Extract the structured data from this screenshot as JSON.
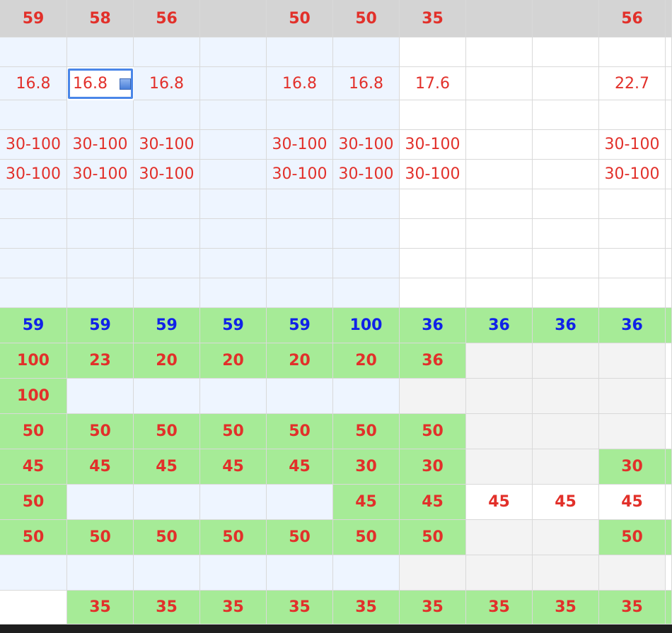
{
  "spreadsheet": {
    "rows": [
      {
        "kind": "header",
        "cells": [
          "59",
          "58",
          "56",
          "",
          "50",
          "50",
          "35",
          "",
          "",
          "56"
        ]
      },
      {
        "kind": "blank",
        "cells": [
          "",
          "",
          "",
          "",
          "",
          "",
          "",
          "",
          "",
          ""
        ]
      },
      {
        "kind": "value",
        "cells": [
          "16.8",
          "16.8",
          "16.8",
          "",
          "16.8",
          "16.8",
          "17.6",
          "",
          "",
          "22.7"
        ]
      },
      {
        "kind": "blank",
        "cells": [
          "",
          "",
          "",
          "",
          "",
          "",
          "",
          "",
          "",
          ""
        ]
      },
      {
        "kind": "range",
        "cells": [
          "30-100",
          "30-100",
          "30-100",
          "",
          "30-100",
          "30-100",
          "30-100",
          "",
          "",
          "30-100"
        ]
      },
      {
        "kind": "range",
        "cells": [
          "30-100",
          "30-100",
          "30-100",
          "",
          "30-100",
          "30-100",
          "30-100",
          "",
          "",
          "30-100"
        ]
      },
      {
        "kind": "blank",
        "cells": [
          "",
          "",
          "",
          "",
          "",
          "",
          "",
          "",
          "",
          ""
        ]
      },
      {
        "kind": "blank",
        "cells": [
          "",
          "",
          "",
          "",
          "",
          "",
          "",
          "",
          "",
          ""
        ]
      },
      {
        "kind": "blank",
        "cells": [
          "",
          "",
          "",
          "",
          "",
          "",
          "",
          "",
          "",
          ""
        ]
      },
      {
        "kind": "blank",
        "cells": [
          "",
          "",
          "",
          "",
          "",
          "",
          "",
          "",
          "",
          ""
        ]
      },
      {
        "kind": "data",
        "cells": [
          "59",
          "59",
          "59",
          "59",
          "59",
          "100",
          "36",
          "36",
          "36",
          "36"
        ]
      },
      {
        "kind": "data",
        "cells": [
          "100",
          "23",
          "20",
          "20",
          "20",
          "20",
          "36",
          "",
          "",
          ""
        ]
      },
      {
        "kind": "data",
        "cells": [
          "100",
          "",
          "",
          "",
          "",
          "",
          "",
          "",
          "",
          ""
        ]
      },
      {
        "kind": "data",
        "cells": [
          "50",
          "50",
          "50",
          "50",
          "50",
          "50",
          "50",
          "",
          "",
          ""
        ]
      },
      {
        "kind": "data",
        "cells": [
          "45",
          "45",
          "45",
          "45",
          "45",
          "30",
          "30",
          "",
          "",
          "30"
        ]
      },
      {
        "kind": "data",
        "cells": [
          "50",
          "",
          "",
          "",
          "",
          "45",
          "45",
          "45",
          "45",
          "45"
        ]
      },
      {
        "kind": "data",
        "cells": [
          "50",
          "50",
          "50",
          "50",
          "50",
          "50",
          "50",
          "",
          "",
          "50"
        ]
      },
      {
        "kind": "data",
        "cells": [
          "",
          "",
          "",
          "",
          "",
          "",
          "",
          "",
          "",
          ""
        ]
      },
      {
        "kind": "data",
        "cells": [
          "",
          "35",
          "35",
          "35",
          "35",
          "35",
          "35",
          "35",
          "35",
          "35"
        ]
      }
    ],
    "selected_cell": {
      "row": 2,
      "col": 1,
      "value": "16.8"
    },
    "colors": {
      "header_bg": "#d4d4d4",
      "light_blue_bg": "#eef5ff",
      "green_bg": "#a6eb97",
      "grey_bg": "#f3f3f3",
      "red_text": "#e2302a",
      "blue_text": "#1022e8",
      "selection_border": "#4a86e8"
    }
  }
}
